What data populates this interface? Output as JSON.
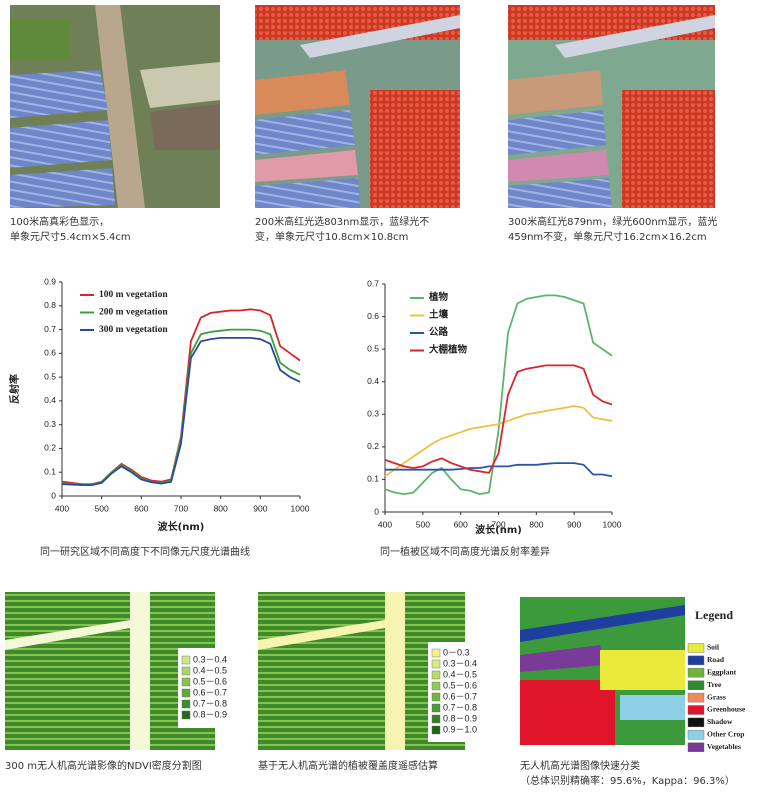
{
  "images": [
    {
      "caption": [
        "100米高真彩色显示，",
        "单象元尺寸5.4cm×5.4cm"
      ]
    },
    {
      "caption": [
        "200米高红光选803nm显示，蓝绿光不",
        "变，单象元尺寸10.8cm×10.8cm"
      ]
    },
    {
      "caption": [
        "300米高红光879nm，绿光600nm显示，蓝光",
        "459nm不变，单象元尺寸16.2cm×16.2cm"
      ]
    }
  ],
  "chart_data": [
    {
      "type": "line",
      "ylabel": "反射率",
      "xlabel": "波长(nm)",
      "caption": "同一研究区域不同高度下不同像元尺度光谱曲线",
      "x": [
        400,
        425,
        450,
        475,
        500,
        525,
        550,
        575,
        600,
        625,
        650,
        675,
        700,
        725,
        750,
        775,
        800,
        825,
        850,
        875,
        900,
        925,
        950,
        975,
        1000
      ],
      "xlim": [
        400,
        1000
      ],
      "xticks": [
        400,
        500,
        600,
        700,
        800,
        900,
        1000
      ],
      "ylim": [
        0,
        0.9
      ],
      "yticks": [
        0,
        0.1,
        0.2,
        0.3,
        0.4,
        0.5,
        0.6,
        0.7,
        0.8,
        0.9
      ],
      "series": [
        {
          "name": "100 m vegetation",
          "color": "#d7262b",
          "values": [
            0.06,
            0.055,
            0.05,
            0.05,
            0.06,
            0.1,
            0.135,
            0.11,
            0.08,
            0.065,
            0.06,
            0.07,
            0.25,
            0.65,
            0.75,
            0.77,
            0.775,
            0.78,
            0.78,
            0.785,
            0.78,
            0.76,
            0.63,
            0.6,
            0.57
          ]
        },
        {
          "name": "200 m vegetation",
          "color": "#3d9e3d",
          "values": [
            0.055,
            0.05,
            0.048,
            0.048,
            0.058,
            0.1,
            0.13,
            0.105,
            0.075,
            0.06,
            0.055,
            0.065,
            0.24,
            0.6,
            0.68,
            0.69,
            0.695,
            0.7,
            0.7,
            0.7,
            0.695,
            0.68,
            0.56,
            0.53,
            0.51
          ]
        },
        {
          "name": "300 m vegetation",
          "color": "#2a4b9b",
          "values": [
            0.05,
            0.048,
            0.046,
            0.046,
            0.055,
            0.095,
            0.125,
            0.1,
            0.07,
            0.058,
            0.052,
            0.06,
            0.22,
            0.58,
            0.65,
            0.66,
            0.665,
            0.665,
            0.665,
            0.665,
            0.66,
            0.64,
            0.53,
            0.5,
            0.48
          ]
        }
      ]
    },
    {
      "type": "line",
      "xlabel": "波长(nm)",
      "caption": "同一植被区域不同高度光谱反射率差异",
      "x": [
        400,
        425,
        450,
        475,
        500,
        525,
        550,
        575,
        600,
        625,
        650,
        675,
        700,
        725,
        750,
        775,
        800,
        825,
        850,
        875,
        900,
        925,
        950,
        975,
        1000
      ],
      "xlim": [
        400,
        1000
      ],
      "xticks": [
        400,
        500,
        600,
        700,
        800,
        900,
        1000
      ],
      "ylim": [
        0,
        0.7
      ],
      "yticks": [
        0,
        0.1,
        0.2,
        0.3,
        0.4,
        0.5,
        0.6,
        0.7
      ],
      "series": [
        {
          "name": "植物",
          "color": "#5db56b",
          "values": [
            0.07,
            0.06,
            0.055,
            0.06,
            0.09,
            0.12,
            0.135,
            0.1,
            0.07,
            0.065,
            0.055,
            0.06,
            0.25,
            0.55,
            0.64,
            0.655,
            0.66,
            0.665,
            0.665,
            0.66,
            0.65,
            0.64,
            0.52,
            0.5,
            0.48
          ]
        },
        {
          "name": "土壤",
          "color": "#f0c040",
          "values": [
            0.11,
            0.13,
            0.15,
            0.17,
            0.19,
            0.21,
            0.225,
            0.235,
            0.245,
            0.255,
            0.26,
            0.265,
            0.27,
            0.28,
            0.29,
            0.3,
            0.305,
            0.31,
            0.315,
            0.32,
            0.325,
            0.32,
            0.29,
            0.285,
            0.28
          ]
        },
        {
          "name": "公路",
          "color": "#2b55a8",
          "values": [
            0.13,
            0.13,
            0.13,
            0.13,
            0.13,
            0.13,
            0.13,
            0.13,
            0.132,
            0.135,
            0.135,
            0.14,
            0.14,
            0.14,
            0.145,
            0.145,
            0.145,
            0.148,
            0.15,
            0.15,
            0.15,
            0.145,
            0.115,
            0.115,
            0.11
          ]
        },
        {
          "name": "大棚植物",
          "color": "#d8262c",
          "values": [
            0.16,
            0.15,
            0.14,
            0.135,
            0.14,
            0.155,
            0.165,
            0.15,
            0.14,
            0.13,
            0.125,
            0.12,
            0.18,
            0.36,
            0.43,
            0.44,
            0.445,
            0.45,
            0.45,
            0.45,
            0.45,
            0.44,
            0.36,
            0.34,
            0.33
          ]
        }
      ]
    }
  ],
  "maps": [
    {
      "caption": [
        "300 m无人机高光谱影像的NDVI密度分割图"
      ],
      "legend": [
        {
          "label": "0.3－0.4",
          "color": "#cfe58a"
        },
        {
          "label": "0.4－0.5",
          "color": "#a9d46a"
        },
        {
          "label": "0.5－0.6",
          "color": "#86c24e"
        },
        {
          "label": "0.6－0.7",
          "color": "#5fa83a"
        },
        {
          "label": "0.7－0.8",
          "color": "#3f8a2a"
        },
        {
          "label": "0.8－0.9",
          "color": "#256b1d"
        }
      ]
    },
    {
      "caption": [
        "基于无人机高光谱的植被覆盖度遥感估算"
      ],
      "legend": [
        {
          "label": "0－0.3",
          "color": "#f3f08a"
        },
        {
          "label": "0.3－0.4",
          "color": "#d8ea80"
        },
        {
          "label": "0.4－0.5",
          "color": "#b8db6a"
        },
        {
          "label": "0.5－0.6",
          "color": "#95c956"
        },
        {
          "label": "0.6－0.7",
          "color": "#72b442"
        },
        {
          "label": "0.7－0.8",
          "color": "#4f9a32"
        },
        {
          "label": "0.8－0.9",
          "color": "#347f24"
        },
        {
          "label": "0.9－1.0",
          "color": "#1d6318"
        }
      ]
    },
    {
      "caption": [
        "无人机高光谱图像快速分类",
        "（总体识别精确率：95.6%，Kappa：96.3%）"
      ],
      "legend_title": "Legend",
      "legend": [
        {
          "label": "Soil",
          "color": "#eaea3c"
        },
        {
          "label": "Road",
          "color": "#1e3fa0"
        },
        {
          "label": "Eggplant",
          "color": "#6fb23c"
        },
        {
          "label": "Tree",
          "color": "#2f8a2f"
        },
        {
          "label": "Grass",
          "color": "#f08a5a"
        },
        {
          "label": "Greenhouse",
          "color": "#e0142a"
        },
        {
          "label": "Shadow",
          "color": "#111111"
        },
        {
          "label": "Other Crop",
          "color": "#8fd0e8"
        },
        {
          "label": "Vegetables",
          "color": "#7a3a9a"
        }
      ]
    }
  ]
}
